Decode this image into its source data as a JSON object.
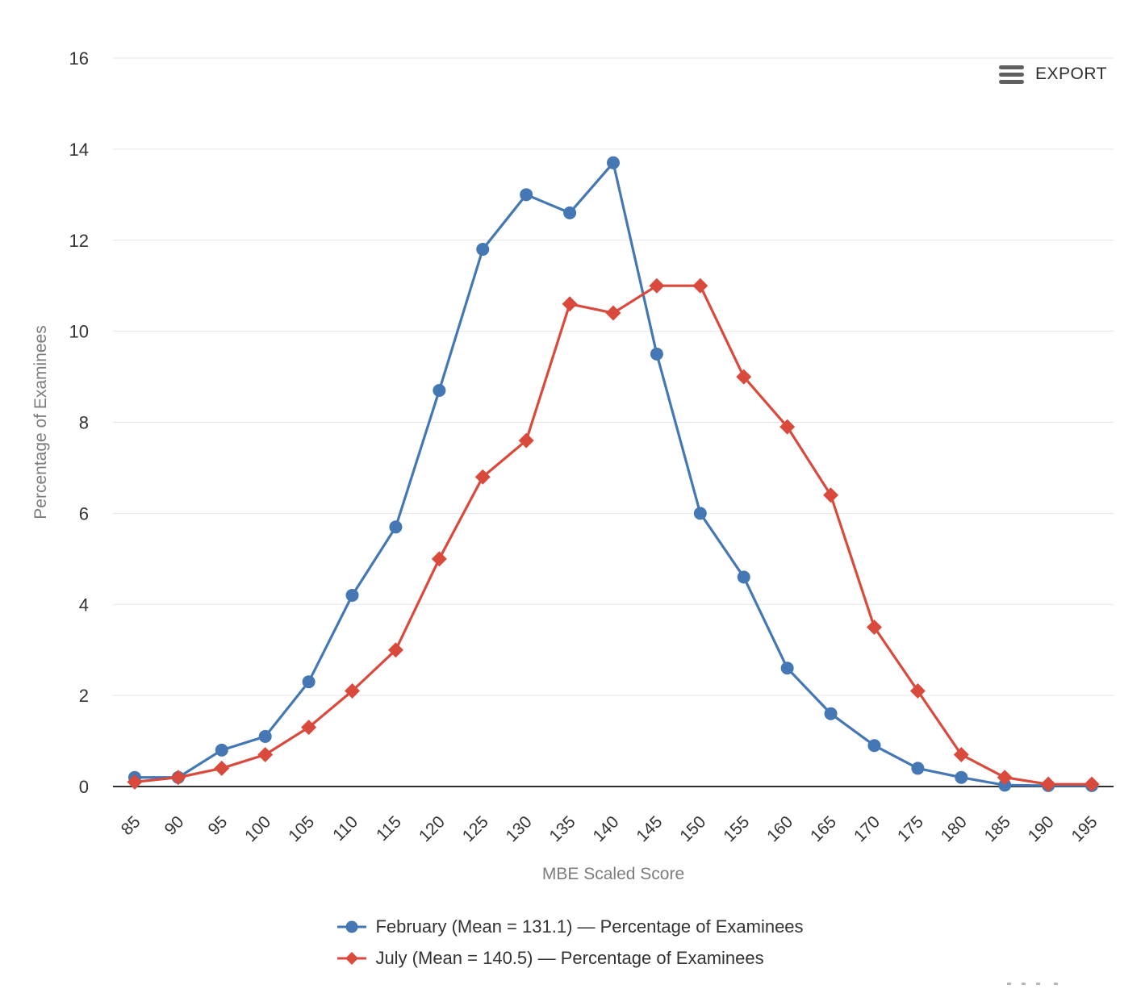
{
  "toolbar": {
    "export_label": "EXPORT"
  },
  "colors": {
    "february_series": "#4477b3",
    "july_series": "#d94a3d",
    "gridline": "#e6e6e6",
    "axis_line": "#2f2f2f",
    "tick_label": "#333333",
    "axis_title": "#7d7d7d"
  },
  "chart_data": {
    "type": "line",
    "title": "",
    "xlabel": "MBE Scaled Score",
    "ylabel": "Percentage of Examinees",
    "x": [
      85,
      90,
      95,
      100,
      105,
      110,
      115,
      120,
      125,
      130,
      135,
      140,
      145,
      150,
      155,
      160,
      165,
      170,
      175,
      180,
      185,
      190,
      195
    ],
    "ylim": [
      0,
      16
    ],
    "ytick_step": 2,
    "grid": true,
    "legend_position": "bottom-center",
    "series": [
      {
        "name": "February (Mean = 131.1) — Percentage of Examinees",
        "mean": 131.1,
        "marker": "circle",
        "color": "#4477b3",
        "values": [
          0.2,
          0.2,
          0.8,
          1.1,
          2.3,
          4.2,
          5.7,
          8.7,
          11.8,
          13.0,
          12.6,
          13.7,
          9.5,
          6.0,
          4.6,
          2.6,
          1.6,
          0.9,
          0.4,
          0.2,
          0.03,
          0.02,
          0.02
        ]
      },
      {
        "name": "July (Mean = 140.5) — Percentage of Examinees",
        "mean": 140.5,
        "marker": "diamond",
        "color": "#d94a3d",
        "values": [
          0.1,
          0.2,
          0.4,
          0.7,
          1.3,
          2.1,
          3.0,
          5.0,
          6.8,
          7.6,
          10.6,
          10.4,
          11.0,
          11.0,
          9.0,
          7.9,
          6.4,
          3.5,
          2.1,
          0.7,
          0.2,
          0.05,
          0.05
        ]
      }
    ]
  }
}
